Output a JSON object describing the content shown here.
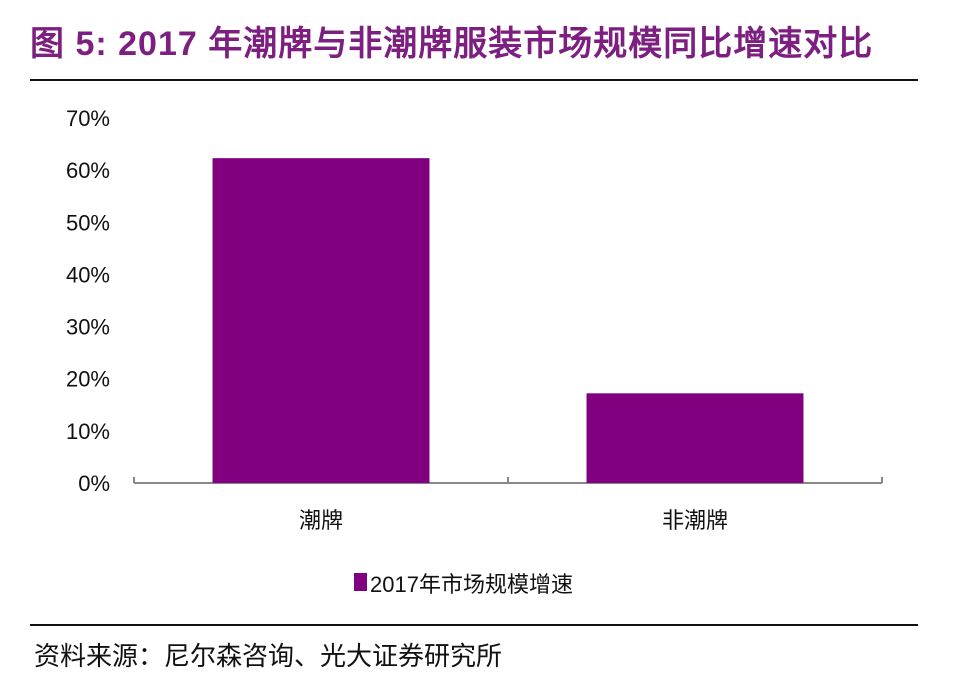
{
  "title": "图 5: 2017 年潮牌与非潮牌服装市场规模同比增速对比",
  "source": "资料来源：尼尔森咨询、光大证券研究所",
  "chart_data": {
    "type": "bar",
    "categories": [
      "潮牌",
      "非潮牌"
    ],
    "series": [
      {
        "name": "2017年市场规模增速",
        "values": [
          62.3,
          17.2
        ],
        "color": "#800080"
      }
    ],
    "ylim": [
      0,
      70
    ],
    "yticks": [
      0,
      10,
      20,
      30,
      40,
      50,
      60,
      70
    ],
    "ytick_labels": [
      "0%",
      "10%",
      "20%",
      "30%",
      "40%",
      "50%",
      "60%",
      "70%"
    ],
    "grid": false,
    "legend_position": "bottom"
  }
}
